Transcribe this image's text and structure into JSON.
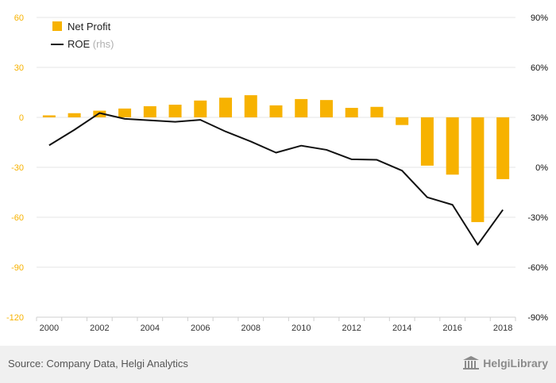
{
  "chart_data": {
    "type": "bar",
    "x": [
      "2000",
      "2001",
      "2002",
      "2003",
      "2004",
      "2005",
      "2006",
      "2007",
      "2008",
      "2009",
      "2010",
      "2011",
      "2012",
      "2013",
      "2014",
      "2015",
      "2016",
      "2017",
      "2018"
    ],
    "x_tick_labels": [
      "2000",
      "2002",
      "2004",
      "2006",
      "2008",
      "2010",
      "2012",
      "2014",
      "2016",
      "2018"
    ],
    "series": [
      {
        "name": "Net Profit",
        "type": "bar",
        "axis": "left",
        "color": "#f7b200",
        "values": [
          1.2,
          2.5,
          4.0,
          5.3,
          6.7,
          7.6,
          10.1,
          11.8,
          13.3,
          7.2,
          11.0,
          10.4,
          5.7,
          6.3,
          -4.6,
          -29.0,
          -34.4,
          -62.9,
          -37.1
        ]
      },
      {
        "name": "ROE (rhs)",
        "type": "line",
        "axis": "right",
        "color": "#111111",
        "values": [
          13.2,
          22.5,
          32.6,
          29.1,
          28.2,
          27.3,
          28.5,
          21.5,
          15.5,
          8.8,
          13.0,
          10.5,
          4.8,
          4.5,
          -2.0,
          -18.0,
          -22.5,
          -46.5,
          -25.5
        ]
      }
    ],
    "y_left": {
      "ylim": [
        -120,
        60
      ],
      "ticks": [
        "60",
        "30",
        "0",
        "-30",
        "-60",
        "-90",
        "-120"
      ],
      "tick_values": [
        60,
        30,
        0,
        -30,
        -60,
        -90,
        -120
      ]
    },
    "y_right": {
      "ylim": [
        -90,
        90
      ],
      "ticks": [
        "90%",
        "60%",
        "30%",
        "0%",
        "-30%",
        "-60%",
        "-90%"
      ],
      "tick_values": [
        90,
        60,
        30,
        0,
        -30,
        -60,
        -90
      ]
    },
    "legend": {
      "placement": "top-left",
      "items": [
        {
          "label": "Net Profit",
          "suffix": "",
          "color": "#f7b200",
          "marker": "square"
        },
        {
          "label": "ROE",
          "suffix": " (rhs)",
          "color": "#111111",
          "marker": "line"
        }
      ]
    },
    "grid": true,
    "left_tick_color": "#f7b200",
    "right_tick_color": "#111111"
  },
  "footer": {
    "source": "Source: Company Data, Helgi Analytics",
    "brand": "HelgiLibrary",
    "brand_icon": "library-building-icon"
  }
}
